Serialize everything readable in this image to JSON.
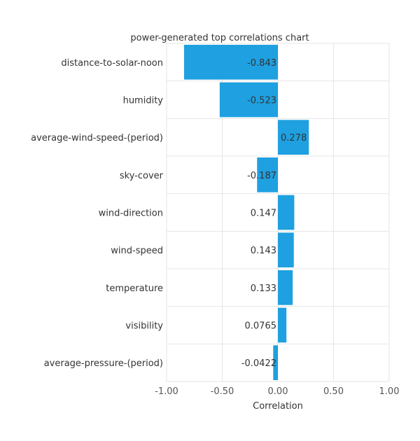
{
  "chart_data": {
    "type": "bar",
    "orientation": "horizontal",
    "title": "power-generated top correlations chart",
    "xlabel": "Correlation",
    "ylabel": "",
    "xlim": [
      -1.0,
      1.0
    ],
    "xticks": [
      -1.0,
      -0.5,
      0.0,
      0.5,
      1.0
    ],
    "xtick_labels": [
      "-1.00",
      "-0.50",
      "0.00",
      "0.50",
      "1.00"
    ],
    "categories": [
      "distance-to-solar-noon",
      "humidity",
      "average-wind-speed-(period)",
      "sky-cover",
      "wind-direction",
      "wind-speed",
      "temperature",
      "visibility",
      "average-pressure-(period)"
    ],
    "values": [
      -0.843,
      -0.523,
      0.278,
      -0.187,
      0.147,
      0.143,
      0.133,
      0.0765,
      -0.0422
    ],
    "value_labels": [
      "-0.843",
      "-0.523",
      "0.278",
      "-0.187",
      "0.147",
      "0.143",
      "0.133",
      "0.0765",
      "-0.0422"
    ],
    "grid": true,
    "bar_color": "#1fa0e0",
    "grid_color": "#e6e6e6"
  }
}
